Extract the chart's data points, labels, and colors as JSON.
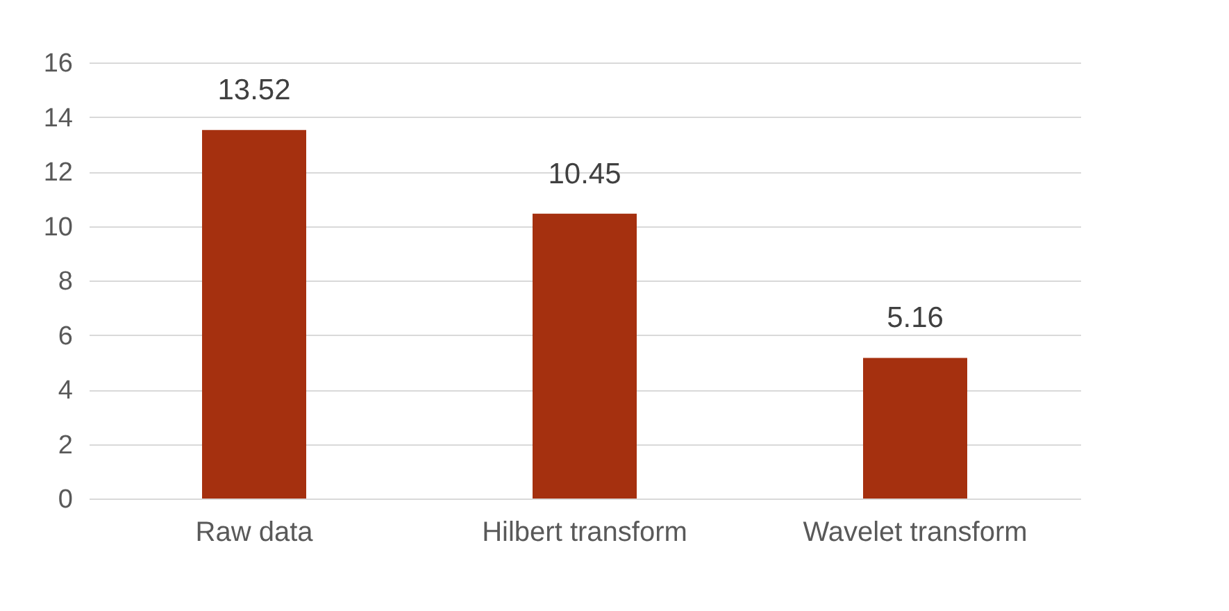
{
  "chart_data": {
    "type": "bar",
    "categories": [
      "Raw data",
      "Hilbert transform",
      "Wavelet transform"
    ],
    "values": [
      13.52,
      10.45,
      5.16
    ],
    "color": "#a5300f",
    "ylim": [
      0,
      16
    ],
    "yticks": [
      0,
      2,
      4,
      6,
      8,
      10,
      12,
      14,
      16
    ],
    "grid": "y",
    "data_labels": true
  }
}
